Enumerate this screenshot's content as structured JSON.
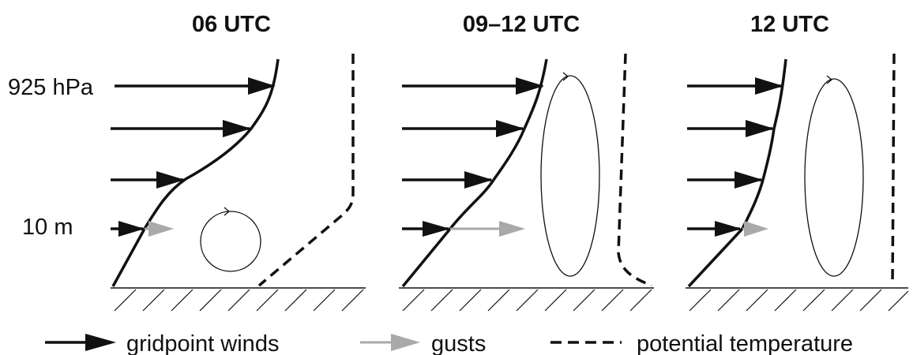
{
  "panels": [
    {
      "title": "06 UTC"
    },
    {
      "title": "09–12 UTC"
    },
    {
      "title": "12 UTC"
    }
  ],
  "levels": {
    "top": "925 hPa",
    "bottom": "10 m"
  },
  "legend": {
    "winds": "gridpoint winds",
    "gusts": "gusts",
    "theta": "potential temperature"
  },
  "colors": {
    "wind_arrow": "#111111",
    "gust_arrow": "#a9a9a9",
    "theta_line": "#111111"
  }
}
